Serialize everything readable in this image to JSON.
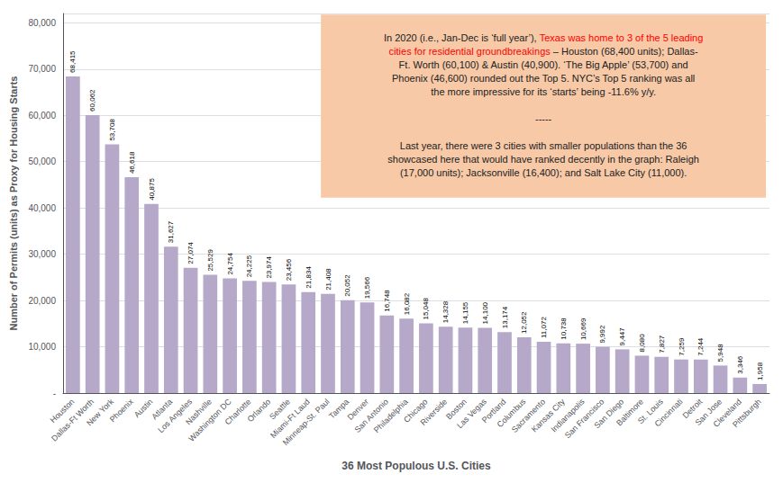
{
  "chart_data": {
    "type": "bar",
    "xlabel": "36 Most Populous U.S. Cities",
    "ylabel": "Number of Permits (units) as Proxy for Housing Starts",
    "categories": [
      "Houston",
      "Dallas-Ft Worth",
      "New York",
      "Phoenix",
      "Austin",
      "Atlanta",
      "Los Angeles",
      "Nashville",
      "Washington DC",
      "Charlotte",
      "Orlando",
      "Seattle",
      "Miami-Ft Laud",
      "Minneap-St. Paul",
      "Tampa",
      "Denver",
      "San Antonio",
      "Philadelphia",
      "Chicago",
      "Riverside",
      "Boston",
      "Las Vegas",
      "Portland",
      "Columbus",
      "Sacramento",
      "Kansas City",
      "Indianapolis",
      "San Francisco",
      "San Diego",
      "Baltimore",
      "St. Louis",
      "Cincinnati",
      "Detroit",
      "San Jose",
      "Cleveland",
      "Pittsburgh"
    ],
    "values": [
      68415,
      60062,
      53708,
      46618,
      40875,
      31627,
      27074,
      25529,
      24754,
      24225,
      23974,
      23456,
      21834,
      21408,
      20052,
      19566,
      16748,
      16082,
      15048,
      14328,
      14155,
      14100,
      13174,
      12052,
      11072,
      10738,
      10669,
      9992,
      9447,
      8080,
      7827,
      7259,
      7244,
      5948,
      3346,
      1958
    ],
    "value_labels": [
      "68,415",
      "60,062",
      "53,708",
      "46,618",
      "40,875",
      "31,627",
      "27,074",
      "25,529",
      "24,754",
      "24,225",
      "23,974",
      "23,456",
      "21,834",
      "21,408",
      "20,052",
      "19,566",
      "16,748",
      "16,082",
      "15,048",
      "14,328",
      "14,155",
      "14,100",
      "13,174",
      "12,052",
      "11,072",
      "10,738",
      "10,669",
      "9,992",
      "9,447",
      "8,080",
      "7,827",
      "7,259",
      "7,244",
      "5,948",
      "3,346",
      "1,958"
    ],
    "color": "#b5a8c8",
    "ylim": [
      0,
      82000
    ],
    "yticks": [
      {
        "value": 0,
        "label": "-"
      },
      {
        "value": 10000,
        "label": "10,000"
      },
      {
        "value": 20000,
        "label": "20,000"
      },
      {
        "value": 30000,
        "label": "30,000"
      },
      {
        "value": 40000,
        "label": "40,000"
      },
      {
        "value": 50000,
        "label": "50,000"
      },
      {
        "value": 60000,
        "label": "60,000"
      },
      {
        "value": 70000,
        "label": "70,000"
      },
      {
        "value": 80000,
        "label": "80,000"
      }
    ],
    "grid": true,
    "data_labels": true,
    "annotations": [
      {
        "color": "#f7c9a7",
        "segments": [
          {
            "text": "In 2020 (i.e., Jan-Dec is ‘full year’), "
          },
          {
            "text": "Texas was home to 3 of the 5 leading\ncities for residential groundbreakings",
            "color": "red"
          },
          {
            "text": " – Houston (68,400 units); Dallas-\nFt. Worth (60,100) & Austin (40,900). ‘The Big Apple’ (53,700) and\nPhoenix (46,600) rounded out the Top 5. NYC’s Top 5 ranking was all\nthe more impressive for its ‘starts’ being -11.6% y/y.\n\n-----\n\nLast year, there were 3 cities with smaller populations than the 36\nshowcased here that would have ranked decently in the graph: Raleigh\n(17,000 units); Jacksonville (16,400); and Salt Lake City (11,000)."
          }
        ]
      }
    ]
  }
}
